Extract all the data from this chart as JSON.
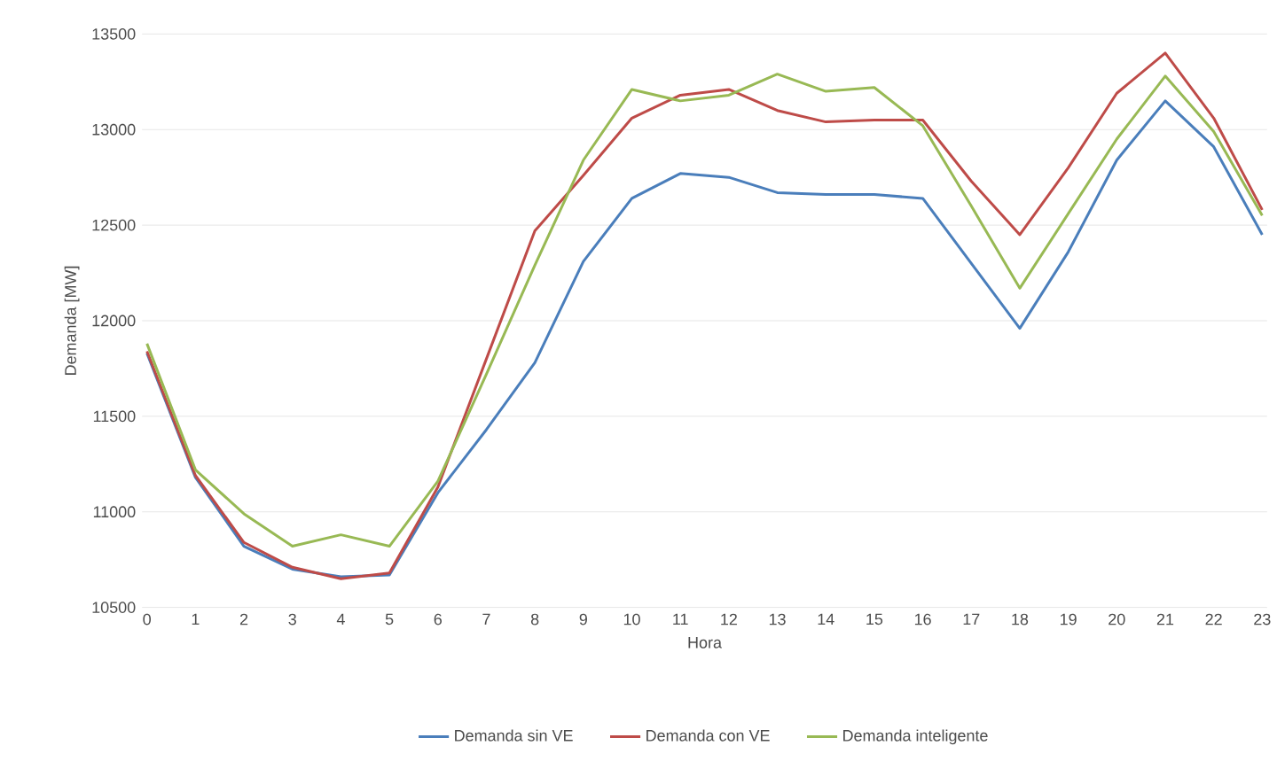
{
  "chart_data": {
    "type": "line",
    "xlabel": "Hora",
    "ylabel": "Demanda [MW]",
    "categories": [
      "0",
      "1",
      "2",
      "3",
      "4",
      "5",
      "6",
      "7",
      "8",
      "9",
      "10",
      "11",
      "12",
      "13",
      "14",
      "15",
      "16",
      "17",
      "18",
      "19",
      "20",
      "21",
      "22",
      "23"
    ],
    "series": [
      {
        "name": "Demanda sin VE",
        "color": "#4a7ebb",
        "values": [
          11830,
          11180,
          10820,
          10700,
          10660,
          10670,
          11100,
          11430,
          11780,
          12310,
          12640,
          12770,
          12750,
          12670,
          12660,
          12660,
          12640,
          12300,
          11960,
          12360,
          12840,
          13150,
          12910,
          12450
        ]
      },
      {
        "name": "Demanda con VE",
        "color": "#be4b48",
        "values": [
          11840,
          11190,
          10840,
          10710,
          10650,
          10680,
          11130,
          11800,
          12470,
          12760,
          13060,
          13180,
          13210,
          13100,
          13040,
          13050,
          13050,
          12730,
          12450,
          12800,
          13190,
          13400,
          13060,
          12580
        ]
      },
      {
        "name": "Demanda inteligente",
        "color": "#98b954",
        "values": [
          11880,
          11220,
          10990,
          10820,
          10880,
          10820,
          11160,
          11720,
          12290,
          12840,
          13210,
          13150,
          13180,
          13290,
          13200,
          13220,
          13020,
          12600,
          12170,
          12560,
          12950,
          13280,
          12990,
          12550
        ]
      }
    ],
    "ylim": [
      10500,
      13500
    ],
    "yticks": [
      10500,
      11000,
      11500,
      12000,
      12500,
      13000,
      13500
    ],
    "grid": "y",
    "legend": "bottom",
    "marker": "none",
    "line_style": "solid"
  }
}
